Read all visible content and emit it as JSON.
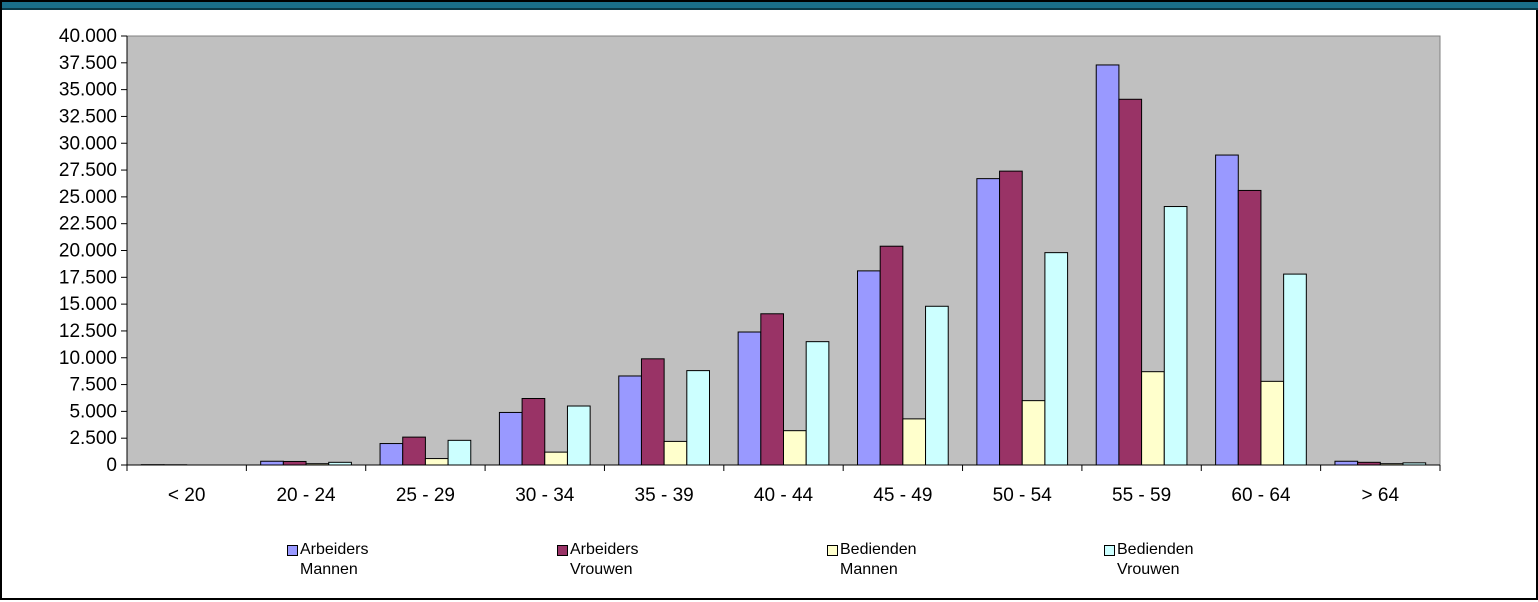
{
  "chart_data": {
    "type": "bar",
    "categories": [
      "< 20",
      "20 - 24",
      "25 - 29",
      "30 - 34",
      "35 - 39",
      "40 - 44",
      "45 - 49",
      "50 - 54",
      "55 - 59",
      "60 - 64",
      "> 64"
    ],
    "series": [
      {
        "name": "Arbeiders Mannen",
        "color": "#9999ff",
        "values": [
          30,
          350,
          2000,
          4900,
          8300,
          12400,
          18100,
          26700,
          37300,
          28900,
          350
        ]
      },
      {
        "name": "Arbeiders Vrouwen",
        "color": "#993366",
        "values": [
          20,
          330,
          2600,
          6200,
          9900,
          14100,
          20400,
          27400,
          34100,
          25600,
          250
        ]
      },
      {
        "name": "Bedienden Mannen",
        "color": "#ffffcc",
        "values": [
          0,
          120,
          600,
          1200,
          2200,
          3200,
          4300,
          6000,
          8700,
          7800,
          120
        ]
      },
      {
        "name": "Bedienden Vrouwen",
        "color": "#ccffff",
        "values": [
          0,
          250,
          2300,
          5500,
          8800,
          11500,
          14800,
          19800,
          24100,
          17800,
          200
        ]
      }
    ],
    "y_tick_labels": [
      "0",
      "2.500",
      "5.000",
      "7.500",
      "10.000",
      "12.500",
      "15.000",
      "17.500",
      "20.000",
      "22.500",
      "25.000",
      "27.500",
      "30.000",
      "32.500",
      "35.000",
      "37.500",
      "40.000"
    ],
    "ylim": [
      0,
      40000
    ],
    "plot_background": "#c0c0c0",
    "grid": false,
    "legend_position": "bottom",
    "title": "",
    "xlabel": "",
    "ylabel": ""
  },
  "legend": {
    "items": [
      {
        "line1": "Arbeiders",
        "line2": "Mannen",
        "color": "#9999ff"
      },
      {
        "line1": "Arbeiders",
        "line2": "Vrouwen",
        "color": "#993366"
      },
      {
        "line1": "Bedienden",
        "line2": "Mannen",
        "color": "#ffffcc"
      },
      {
        "line1": "Bedienden",
        "line2": "Vrouwen",
        "color": "#ccffff"
      }
    ]
  },
  "window": {
    "accent_color": "#1a6f8a"
  }
}
